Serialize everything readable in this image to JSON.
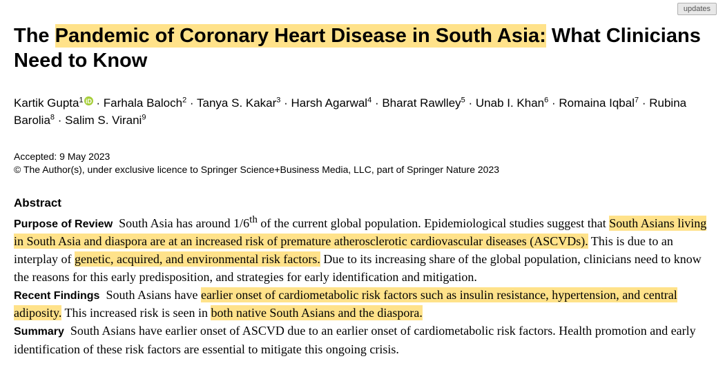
{
  "updates_label": "updates",
  "title": {
    "pre": "The ",
    "highlight": "Pandemic of Coronary Heart Disease in South Asia:",
    "post": " What Clinicians Need to Know"
  },
  "authors": [
    {
      "name": "Kartik Gupta",
      "aff": "1",
      "orcid": true
    },
    {
      "name": "Farhala Baloch",
      "aff": "2"
    },
    {
      "name": "Tanya S. Kakar",
      "aff": "3"
    },
    {
      "name": "Harsh Agarwal",
      "aff": "4"
    },
    {
      "name": "Bharat Rawlley",
      "aff": "5"
    },
    {
      "name": "Unab I. Khan",
      "aff": "6"
    },
    {
      "name": "Romaina Iqbal",
      "aff": "7"
    },
    {
      "name": "Rubina Barolia",
      "aff": "8"
    },
    {
      "name": "Salim S. Virani",
      "aff": "9"
    }
  ],
  "accepted": "Accepted: 9 May 2023",
  "copyright": "© The Author(s), under exclusive licence to Springer Science+Business Media, LLC, part of Springer Nature 2023",
  "abstract_heading": "Abstract",
  "purpose": {
    "label": "Purpose of Review",
    "t1": "South Asia has around 1/6",
    "sup": "th",
    "t2": " of the current global population. Epidemiological studies suggest that ",
    "h1": "South Asians living in South Asia and diaspora are at an increased risk of premature atherosclerotic cardiovascular diseases (ASCVDs).",
    "t3": " This is due to an interplay of ",
    "h2": "genetic, acquired, and environmental risk factors.",
    "t4": " Due to its increasing share of the global population, clinicians need to know the reasons for this early predisposition, and strategies for early identification and mitigation."
  },
  "findings": {
    "label": "Recent Findings",
    "t1": "South Asians have ",
    "h1": "earlier onset of cardiometabolic risk factors such as insulin resistance, hypertension, and central adiposity.",
    "t2": " This increased risk is seen in ",
    "h2": "both native South Asians and the diaspora.",
    "t3": ""
  },
  "summary": {
    "label": "Summary",
    "t1": "South Asians have earlier onset of ASCVD due to an earlier onset of cardiometabolic risk factors. Health promotion and early identification of these risk factors are essential to mitigate this ongoing crisis."
  },
  "highlight_color": "#ffe28a"
}
